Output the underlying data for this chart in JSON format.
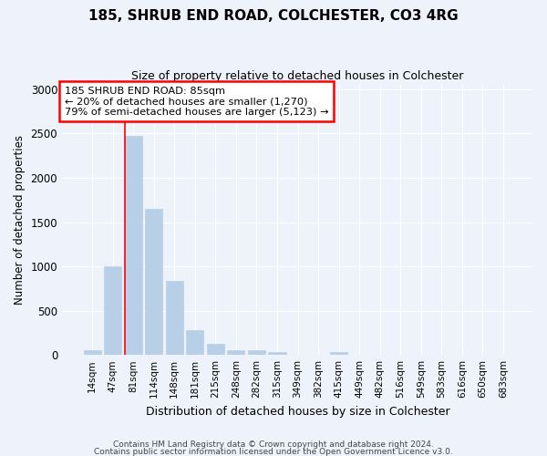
{
  "title": "185, SHRUB END ROAD, COLCHESTER, CO3 4RG",
  "subtitle": "Size of property relative to detached houses in Colchester",
  "xlabel": "Distribution of detached houses by size in Colchester",
  "ylabel": "Number of detached properties",
  "bar_labels": [
    "14sqm",
    "47sqm",
    "81sqm",
    "114sqm",
    "148sqm",
    "181sqm",
    "215sqm",
    "248sqm",
    "282sqm",
    "315sqm",
    "349sqm",
    "382sqm",
    "415sqm",
    "449sqm",
    "482sqm",
    "516sqm",
    "549sqm",
    "583sqm",
    "616sqm",
    "650sqm",
    "683sqm"
  ],
  "bar_values": [
    55,
    1000,
    2470,
    1650,
    840,
    275,
    130,
    55,
    55,
    30,
    0,
    0,
    30,
    0,
    0,
    0,
    0,
    0,
    0,
    0,
    0
  ],
  "bar_color": "#b8cfe8",
  "bar_edge_color": "#b8cfe8",
  "background_color": "#eef2fa",
  "grid_color": "#ffffff",
  "red_line_bin_index": 2,
  "annotation_box_text": "185 SHRUB END ROAD: 85sqm\n← 20% of detached houses are smaller (1,270)\n79% of semi-detached houses are larger (5,123) →",
  "ylim": [
    0,
    3050
  ],
  "yticks": [
    0,
    500,
    1000,
    1500,
    2000,
    2500,
    3000
  ],
  "footer_line1": "Contains HM Land Registry data © Crown copyright and database right 2024.",
  "footer_line2": "Contains public sector information licensed under the Open Government Licence v3.0."
}
